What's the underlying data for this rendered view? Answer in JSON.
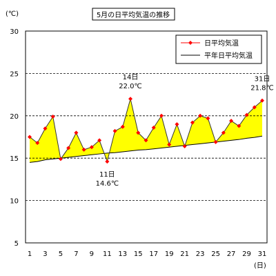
{
  "chart_data": {
    "type": "line",
    "title": "5月の日平均気温の推移",
    "unit_label": "(℃)",
    "x_unit_label": "(日)",
    "x": [
      1,
      2,
      3,
      4,
      5,
      6,
      7,
      8,
      9,
      10,
      11,
      12,
      13,
      14,
      15,
      16,
      17,
      18,
      19,
      20,
      21,
      22,
      23,
      24,
      25,
      26,
      27,
      28,
      29,
      30,
      31
    ],
    "x_tick_labels": [
      "1",
      "3",
      "5",
      "7",
      "9",
      "11",
      "13",
      "15",
      "17",
      "19",
      "21",
      "23",
      "25",
      "27",
      "29",
      "31"
    ],
    "y_ticks": [
      "5",
      "10",
      "15",
      "20",
      "25",
      "30"
    ],
    "ylim": [
      5,
      30
    ],
    "xlim": [
      1,
      31
    ],
    "grid": "horizontal dashed",
    "legend_position": "top-right",
    "series": [
      {
        "name": "日平均気温",
        "color": "#ff0000",
        "marker": "diamond",
        "values": [
          17.5,
          16.8,
          18.5,
          19.9,
          14.9,
          16.2,
          18.0,
          16.0,
          16.3,
          17.1,
          14.6,
          18.2,
          18.7,
          22.0,
          18.0,
          17.1,
          18.6,
          20.0,
          16.6,
          19.0,
          16.4,
          19.2,
          20.0,
          19.7,
          16.9,
          18.0,
          19.4,
          18.8,
          20.1,
          21.0,
          21.8
        ]
      },
      {
        "name": "平年日平均気温",
        "color": "#000000",
        "values": [
          14.5,
          14.6,
          14.8,
          14.9,
          15.0,
          15.1,
          15.2,
          15.3,
          15.4,
          15.5,
          15.6,
          15.65,
          15.75,
          15.85,
          15.95,
          16.0,
          16.1,
          16.2,
          16.3,
          16.4,
          16.5,
          16.6,
          16.7,
          16.8,
          16.9,
          17.0,
          17.1,
          17.2,
          17.35,
          17.45,
          17.6
        ]
      }
    ],
    "fill_color": "#ffff00",
    "annotations": [
      {
        "lines": [
          "14日",
          "22.0℃"
        ],
        "x": 14,
        "y": 22.0,
        "place": "above"
      },
      {
        "lines": [
          "11日",
          "14.6℃"
        ],
        "x": 11,
        "y": 14.6,
        "place": "below"
      },
      {
        "lines": [
          "31日",
          "21.8℃"
        ],
        "x": 31,
        "y": 21.8,
        "place": "above"
      }
    ]
  }
}
